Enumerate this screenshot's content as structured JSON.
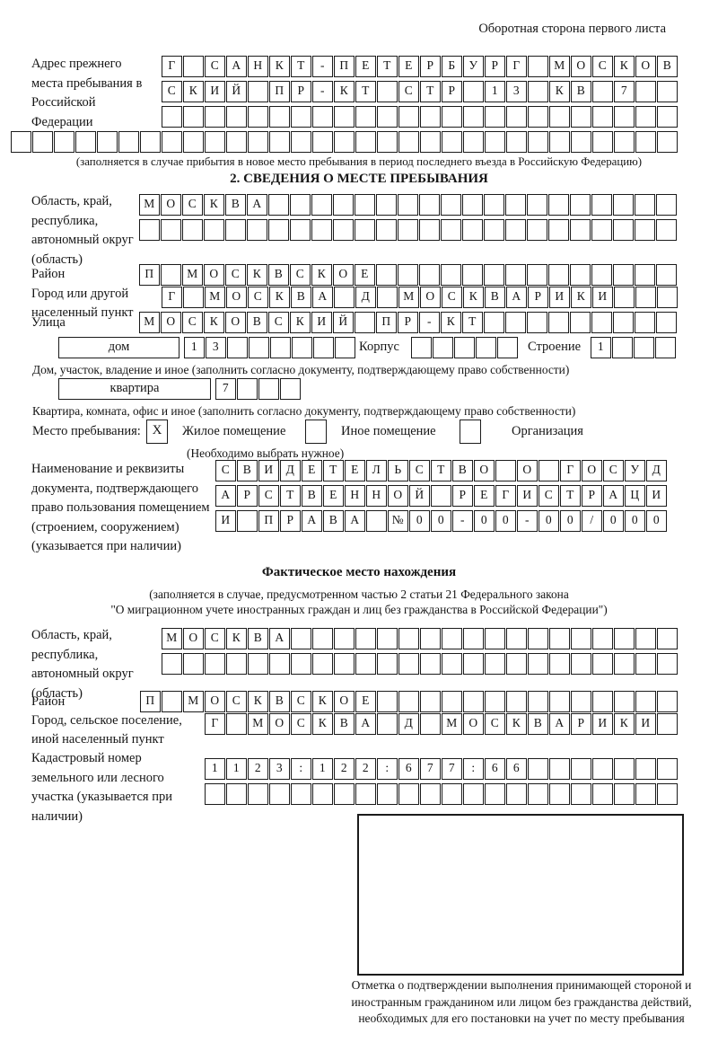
{
  "header": {
    "corner_note": "Оборотная сторона первого листа"
  },
  "prev_address": {
    "label": "Адрес прежнего места пребывания в Российской Федерации",
    "rows": [
      {
        "text": "Г САНКТ-ПЕТЕРБУРГ МОСКОВ",
        "count": 24
      },
      {
        "text": "СКИЙ ПР-КТ СТР 13 КВ 7",
        "count": 24
      },
      {
        "text": "",
        "count": 24
      },
      {
        "text": "",
        "count": 31
      }
    ],
    "note": "(заполняется в случае прибытия в новое место пребывания в период последнего въезда в Российскую Федерацию)"
  },
  "section2": {
    "title": "2. СВЕДЕНИЯ О МЕСТЕ ПРЕБЫВАНИЯ",
    "region": {
      "label": "Область, край, республика, автономный округ (область)",
      "rows": [
        {
          "text": "МОСКВА",
          "count": 25
        },
        {
          "text": "",
          "count": 25
        }
      ]
    },
    "district": {
      "label": "Район",
      "row": {
        "text": "П МОСКВСКОЕ",
        "count": 25
      }
    },
    "city": {
      "label": "Город или другой населенный пункт",
      "row": {
        "text": "Г МОСКВА Д МОСКВАРИКИ",
        "count": 24
      }
    },
    "street": {
      "label": "Улица",
      "row": {
        "text": "МОСКОВСКИЙ ПР-КТ",
        "count": 25
      }
    },
    "house": {
      "box_label": "дом",
      "cells": {
        "text": "13",
        "count": 8
      },
      "korpus_label": "Корпус",
      "korpus_cells": {
        "text": "",
        "count": 5
      },
      "stroenie_label": "Строение",
      "stroenie_cells": {
        "text": "1",
        "count": 4
      },
      "note": "Дом, участок, владение и иное (заполнить согласно документу, подтверждающему право собственности)"
    },
    "apartment": {
      "box_label": "квартира",
      "cells": {
        "text": "7",
        "count": 4
      },
      "note": "Квартира, комната, офис и иное (заполнить согласно документу, подтверждающему право собственности)"
    },
    "stay_type": {
      "label": "Место пребывания:",
      "options": [
        {
          "label": "Жилое помещение",
          "mark": "X"
        },
        {
          "label": "Иное помещение",
          "mark": ""
        },
        {
          "label": "Организация",
          "mark": ""
        }
      ],
      "note": "(Необходимо выбрать нужное)"
    },
    "document": {
      "label": "Наименование и реквизиты документа, подтверждающего право пользования помещением (строением, сооружением) (указывается при наличии)",
      "rows": [
        {
          "text": "СВИДЕТЕЛЬСТВО О ГОСУД",
          "count": 21
        },
        {
          "text": "АРСТВЕННОЙ РЕГИСТРАЦИ",
          "count": 21
        },
        {
          "text": "И ПРАВА №00-00-00/000",
          "count": 21
        }
      ]
    }
  },
  "actual_location": {
    "title": "Фактическое место нахождения",
    "note_line1": "(заполняется в случае, предусмотренном частью 2 статьи 21 Федерального закона",
    "note_line2": "\"О миграционном учете иностранных граждан и лиц без гражданства в Российской Федерации\")",
    "region": {
      "label": "Область, край, республика, автономный округ (область)",
      "rows": [
        {
          "text": "МОСКВА",
          "count": 24
        },
        {
          "text": "",
          "count": 24
        }
      ]
    },
    "district": {
      "label": "Район",
      "row": {
        "text": "П МОСКВСКОЕ",
        "count": 25
      }
    },
    "city": {
      "label": "Город, сельское поселение, иной населенный пункт",
      "row": {
        "text": "Г МОСКВА Д МОСКВАРИКИ",
        "count": 22
      }
    },
    "cadastre": {
      "label": "Кадастровый номер земельного или лесного участка (указывается при наличии)",
      "rows": [
        {
          "text": "1123:122:677:66",
          "count": 22
        },
        {
          "text": "",
          "count": 22
        }
      ]
    },
    "stamp_caption": "Отметка о подтверждении выполнения принимающей стороной и иностранным гражданином или лицом без гражданства действий, необходимых для его постановки на учет по месту пребывания"
  }
}
